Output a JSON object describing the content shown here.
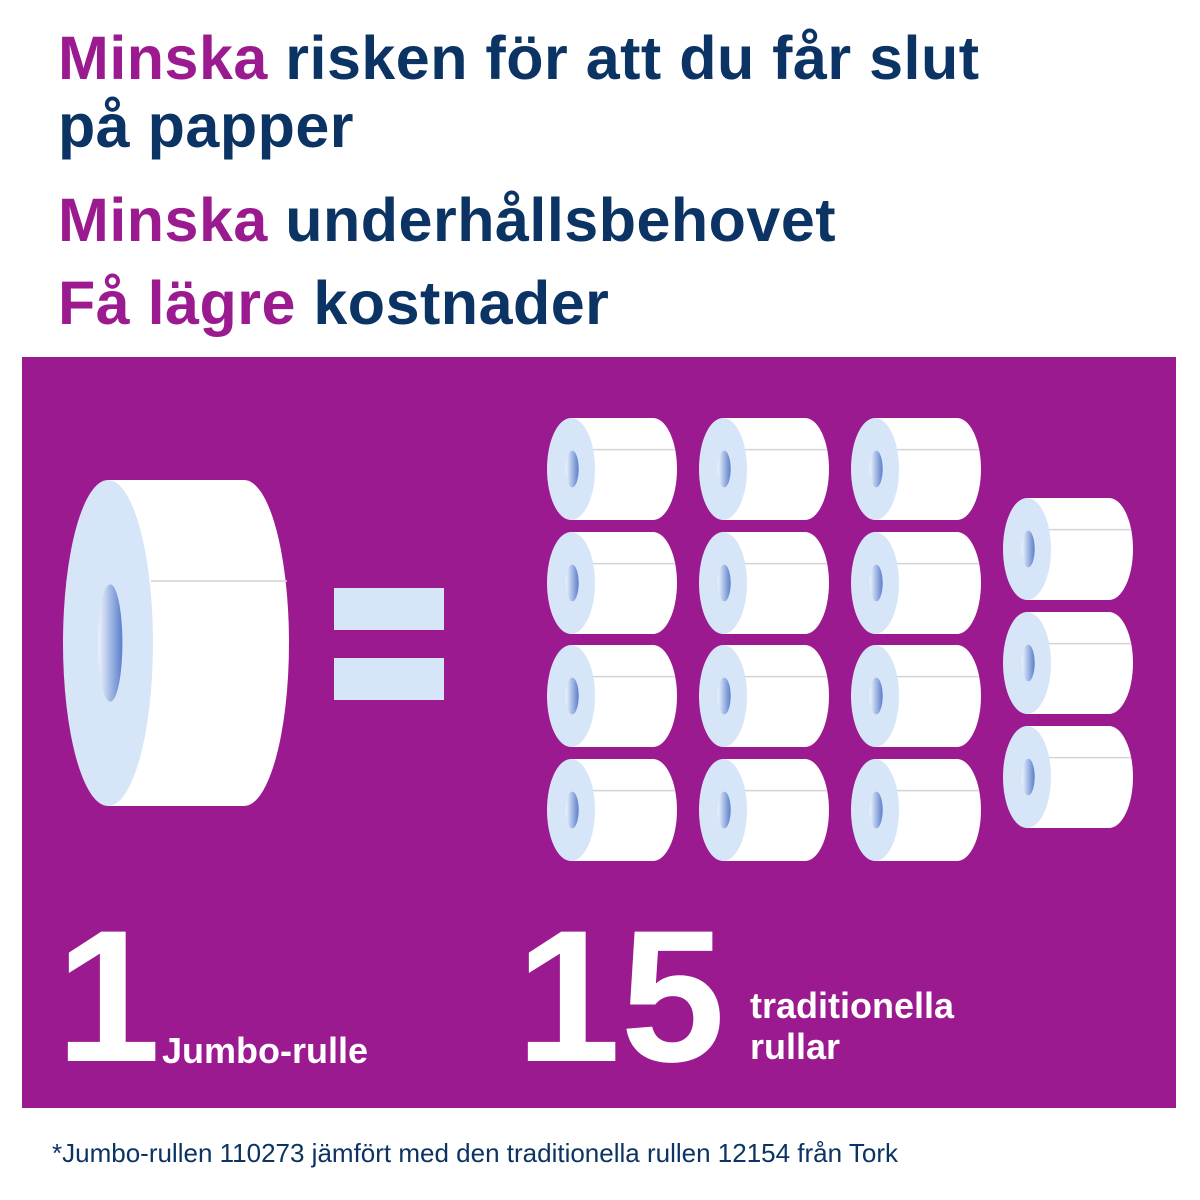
{
  "headline": [
    {
      "accent": "Minska",
      "rest": " risken för att du får slut"
    },
    {
      "accent": "",
      "rest": "på papper"
    },
    {
      "accent": "Minska",
      "rest": " underhållsbehovet"
    },
    {
      "accent": "Få lägre",
      "rest": " kostnader"
    }
  ],
  "comparison": {
    "jumbo_count": "1",
    "jumbo_label": "Jumbo-rulle",
    "traditional_count": "15",
    "traditional_label_line1": "traditionella",
    "traditional_label_line2": "rullar"
  },
  "footnote": "*Jumbo-rullen 110273 jämfört med den traditionella rullen 12154 från Tork",
  "colors": {
    "accent": "#9c1a8f",
    "navy": "#0b3363",
    "panel": "#9c1a90",
    "roll_side": "#d6e6f8",
    "equals": "#d6e6f8"
  },
  "icons": [
    "jumbo-roll-icon",
    "equals-icon",
    "toilet-roll-icon"
  ]
}
